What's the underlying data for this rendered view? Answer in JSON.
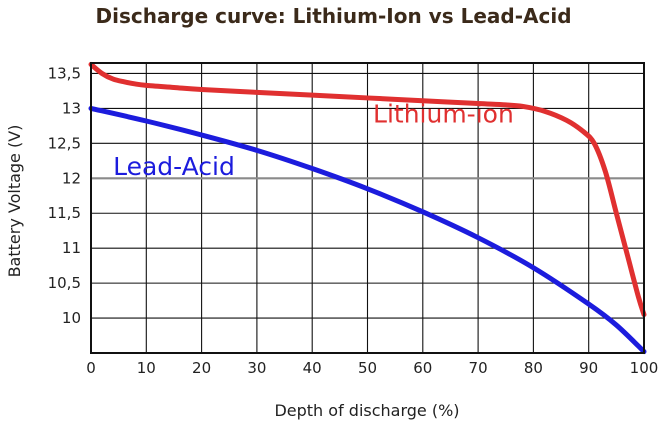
{
  "chart_data": {
    "type": "line",
    "title": "Discharge curve: Lithium-Ion vs Lead-Acid",
    "xlabel": "Depth of discharge (%)",
    "ylabel": "Battery Voltage (V)",
    "xlim": [
      0,
      100
    ],
    "ylim": [
      9.5,
      13.65
    ],
    "x_ticks": [
      0,
      10,
      20,
      30,
      40,
      50,
      60,
      70,
      80,
      90,
      100
    ],
    "x_tick_labels": [
      "0",
      "10",
      "20",
      "30",
      "40",
      "50",
      "60",
      "70",
      "80",
      "90",
      "100"
    ],
    "y_ticks": [
      10,
      10.5,
      11,
      11.5,
      12,
      12.5,
      13,
      13.5
    ],
    "y_tick_labels": [
      "10",
      "10,5",
      "11",
      "11,5",
      "12",
      "12,5",
      "13",
      "13,5"
    ],
    "grid": true,
    "reference_line": 12,
    "series": [
      {
        "name": "Lithium-ion",
        "color": "#e03030",
        "label_pos": [
          51,
          12.8
        ],
        "x": [
          0,
          2,
          4,
          6,
          8,
          10,
          15,
          20,
          30,
          40,
          50,
          60,
          70,
          75,
          78,
          82,
          86,
          89,
          91,
          93,
          95,
          97,
          99,
          100
        ],
        "y": [
          13.63,
          13.5,
          13.42,
          13.38,
          13.35,
          13.33,
          13.3,
          13.27,
          13.23,
          13.19,
          13.15,
          13.11,
          13.07,
          13.05,
          13.03,
          12.96,
          12.83,
          12.67,
          12.5,
          12.1,
          11.5,
          10.9,
          10.3,
          10.05
        ]
      },
      {
        "name": "Lead-Acid",
        "color": "#1c1cdd",
        "label_pos": [
          4,
          12.05
        ],
        "x": [
          0,
          10,
          20,
          30,
          40,
          50,
          60,
          70,
          80,
          90,
          95,
          100
        ],
        "y": [
          13.0,
          12.82,
          12.62,
          12.4,
          12.14,
          11.85,
          11.52,
          11.15,
          10.72,
          10.2,
          9.9,
          9.52
        ]
      }
    ]
  }
}
